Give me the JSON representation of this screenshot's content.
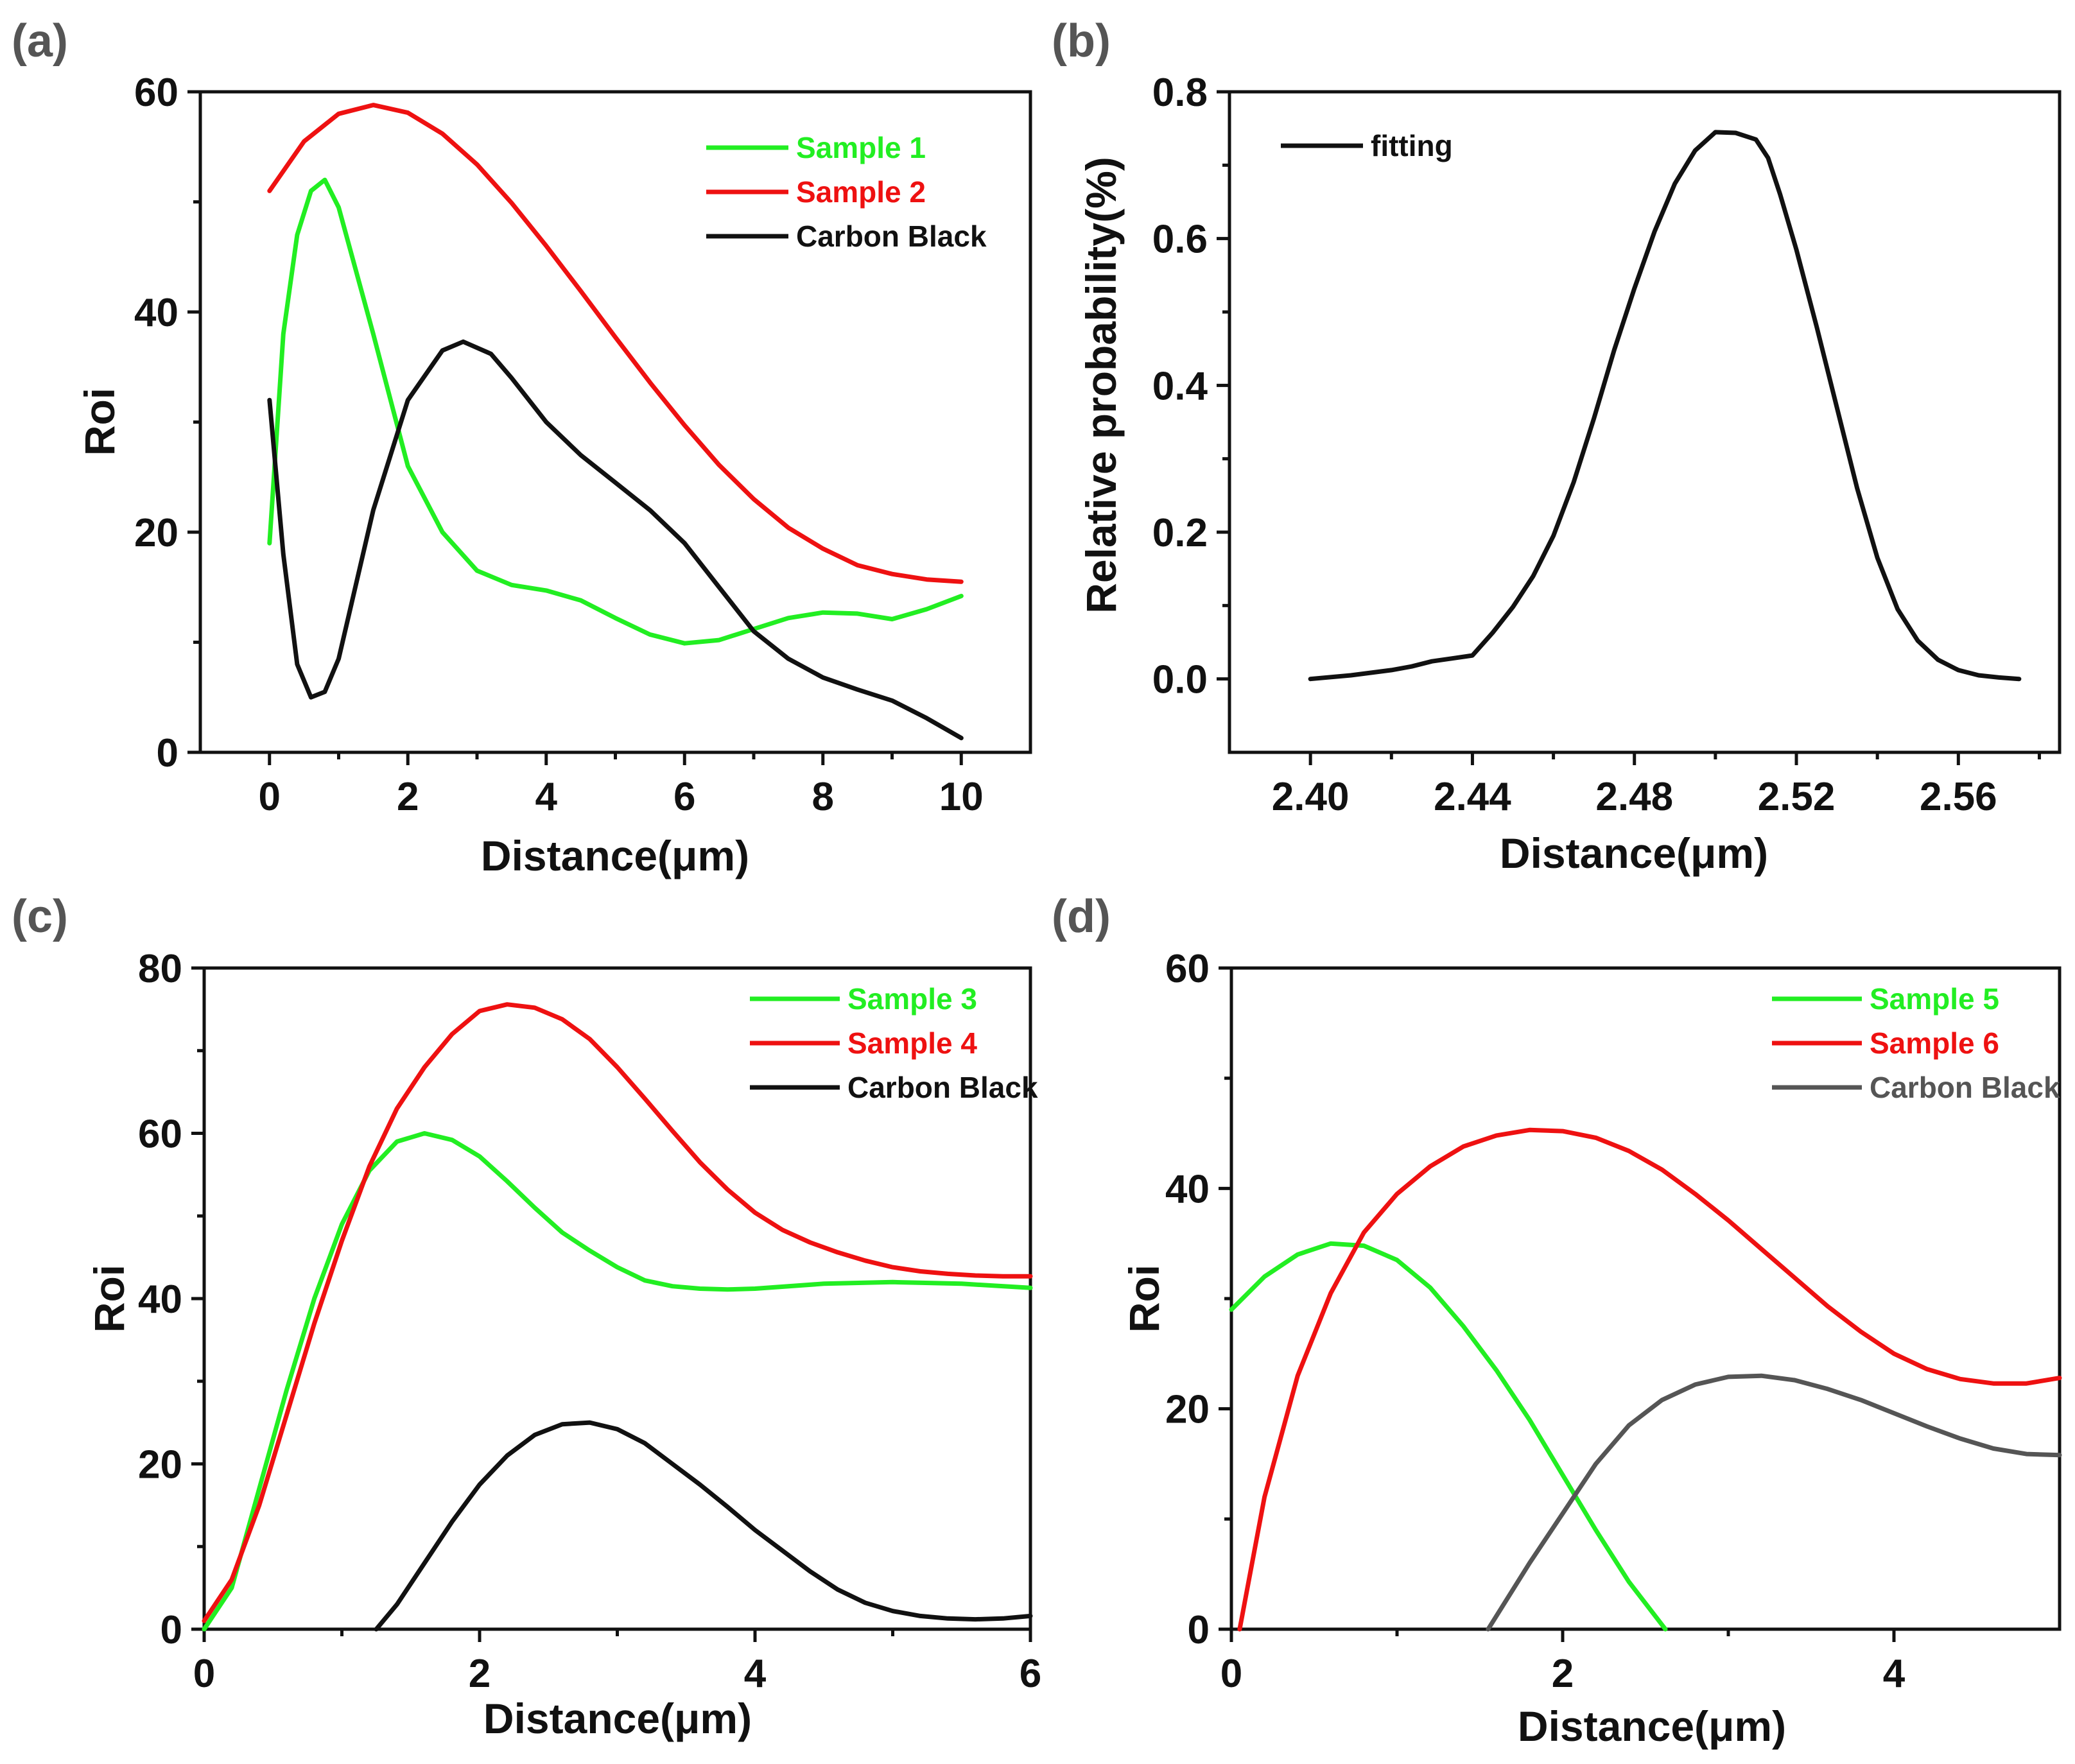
{
  "chart_data": [
    {
      "panel": "(a)",
      "type": "line",
      "xlabel": "Distance(μm)",
      "ylabel": "Roi",
      "xlim": [
        -1,
        11
      ],
      "ylim": [
        0,
        60
      ],
      "xticks": [
        0,
        2,
        4,
        6,
        8,
        10
      ],
      "yticks": [
        0,
        20,
        40,
        60
      ],
      "xticklabels": [
        "0",
        "2",
        "4",
        "6",
        "8",
        "10"
      ],
      "yticklabels": [
        "0",
        "20",
        "40",
        "60"
      ],
      "legend_position": "top-right",
      "series": [
        {
          "name": "Sample 1",
          "color": "#22ee22",
          "x": [
            0,
            0.2,
            0.4,
            0.6,
            0.8,
            1.0,
            1.5,
            2.0,
            2.5,
            3.0,
            3.5,
            4.0,
            4.5,
            5.0,
            5.5,
            6.0,
            6.5,
            7.0,
            7.5,
            8.0,
            8.5,
            9.0,
            9.5,
            10.0
          ],
          "y": [
            19,
            38,
            47,
            51,
            52,
            49.5,
            38,
            26,
            20,
            16.5,
            15.2,
            14.7,
            13.8,
            12.2,
            10.7,
            9.9,
            10.2,
            11.2,
            12.2,
            12.7,
            12.6,
            12.1,
            13.0,
            14.2
          ]
        },
        {
          "name": "Sample 2",
          "color": "#ee1111",
          "x": [
            0,
            0.5,
            1.0,
            1.5,
            2.0,
            2.5,
            3.0,
            3.5,
            4.0,
            4.5,
            5.0,
            5.5,
            6.0,
            6.5,
            7.0,
            7.5,
            8.0,
            8.5,
            9.0,
            9.5,
            10.0
          ],
          "y": [
            51,
            55.5,
            58,
            58.8,
            58.1,
            56.2,
            53.4,
            49.9,
            46,
            41.9,
            37.7,
            33.6,
            29.7,
            26.1,
            23.0,
            20.4,
            18.5,
            17.0,
            16.2,
            15.7,
            15.5
          ]
        },
        {
          "name": "Carbon Black",
          "color": "#111111",
          "x": [
            0,
            0.2,
            0.4,
            0.6,
            0.8,
            1.0,
            1.5,
            2.0,
            2.5,
            2.8,
            3.2,
            3.5,
            4.0,
            4.5,
            5.0,
            5.5,
            6.0,
            6.5,
            7.0,
            7.5,
            8.0,
            8.5,
            9.0,
            9.5,
            10.0
          ],
          "y": [
            32,
            18,
            8,
            5,
            5.5,
            8.5,
            22,
            32,
            36.5,
            37.3,
            36.2,
            34,
            30,
            27,
            24.5,
            22,
            19,
            15,
            11,
            8.5,
            6.8,
            5.7,
            4.7,
            3.1,
            1.3
          ]
        }
      ]
    },
    {
      "panel": "(b)",
      "type": "line",
      "xlabel": "Distance(μm)",
      "ylabel": "Relative probability(%)",
      "xlim": [
        2.38,
        2.585
      ],
      "ylim": [
        -0.1,
        0.8
      ],
      "xticks": [
        2.4,
        2.44,
        2.48,
        2.52,
        2.56
      ],
      "yticks": [
        0.0,
        0.2,
        0.4,
        0.6,
        0.8
      ],
      "xticklabels": [
        "2.40",
        "2.44",
        "2.48",
        "2.52",
        "2.56"
      ],
      "yticklabels": [
        "0.0",
        "0.2",
        "0.4",
        "0.6",
        "0.8"
      ],
      "legend_position": "top-left",
      "series": [
        {
          "name": "fitting",
          "color": "#111111",
          "x": [
            2.4,
            2.41,
            2.42,
            2.425,
            2.43,
            2.435,
            2.44,
            2.445,
            2.45,
            2.455,
            2.46,
            2.465,
            2.47,
            2.475,
            2.48,
            2.485,
            2.49,
            2.495,
            2.5,
            2.505,
            2.51,
            2.513,
            2.516,
            2.52,
            2.525,
            2.53,
            2.535,
            2.54,
            2.545,
            2.55,
            2.555,
            2.56,
            2.565,
            2.57,
            2.575
          ],
          "y": [
            0.0,
            0.005,
            0.012,
            0.017,
            0.024,
            0.028,
            0.032,
            0.063,
            0.098,
            0.14,
            0.195,
            0.268,
            0.355,
            0.448,
            0.532,
            0.61,
            0.675,
            0.72,
            0.745,
            0.744,
            0.735,
            0.71,
            0.66,
            0.585,
            0.48,
            0.37,
            0.26,
            0.165,
            0.095,
            0.052,
            0.026,
            0.012,
            0.005,
            0.002,
            0.0
          ]
        }
      ]
    },
    {
      "panel": "(c)",
      "type": "line",
      "xlabel": "Distance(μm)",
      "ylabel": "Roi",
      "xlim": [
        0,
        6
      ],
      "ylim": [
        0,
        80
      ],
      "xticks": [
        0,
        2,
        4,
        6
      ],
      "yticks": [
        0,
        20,
        40,
        60,
        80
      ],
      "xticklabels": [
        "0",
        "2",
        "4",
        "6"
      ],
      "yticklabels": [
        "0",
        "20",
        "40",
        "60",
        "80"
      ],
      "legend_position": "top-right",
      "series": [
        {
          "name": "Sample 3",
          "color": "#22ee22",
          "x": [
            0,
            0.2,
            0.4,
            0.6,
            0.8,
            1.0,
            1.2,
            1.4,
            1.6,
            1.8,
            2.0,
            2.2,
            2.4,
            2.6,
            2.8,
            3.0,
            3.2,
            3.4,
            3.6,
            3.8,
            4.0,
            4.5,
            5.0,
            5.5,
            6.0
          ],
          "y": [
            0,
            5,
            17,
            29,
            40,
            49,
            55.5,
            59,
            60,
            59.2,
            57.2,
            54.2,
            51,
            48,
            45.8,
            43.8,
            42.2,
            41.5,
            41.2,
            41.1,
            41.2,
            41.8,
            42,
            41.8,
            41.3
          ]
        },
        {
          "name": "Sample 4",
          "color": "#ee1111",
          "x": [
            0,
            0.2,
            0.4,
            0.6,
            0.8,
            1.0,
            1.2,
            1.4,
            1.6,
            1.8,
            2.0,
            2.2,
            2.4,
            2.6,
            2.8,
            3.0,
            3.2,
            3.4,
            3.6,
            3.8,
            4.0,
            4.2,
            4.4,
            4.6,
            4.8,
            5.0,
            5.2,
            5.4,
            5.6,
            5.8,
            6.0
          ],
          "y": [
            1,
            6,
            15,
            26,
            37,
            47,
            56,
            63,
            68,
            72,
            74.8,
            75.6,
            75.2,
            73.8,
            71.4,
            68,
            64.2,
            60.3,
            56.5,
            53.2,
            50.4,
            48.3,
            46.8,
            45.6,
            44.6,
            43.8,
            43.3,
            43.0,
            42.8,
            42.7,
            42.7
          ]
        },
        {
          "name": "Carbon Black",
          "color": "#111111",
          "x": [
            1.25,
            1.4,
            1.6,
            1.8,
            2.0,
            2.2,
            2.4,
            2.6,
            2.8,
            3.0,
            3.2,
            3.4,
            3.6,
            3.8,
            4.0,
            4.2,
            4.4,
            4.6,
            4.8,
            5.0,
            5.2,
            5.4,
            5.6,
            5.8,
            6.0
          ],
          "y": [
            0,
            3,
            8,
            13,
            17.5,
            21,
            23.5,
            24.8,
            25,
            24.2,
            22.5,
            20,
            17.5,
            14.8,
            12,
            9.5,
            7,
            4.8,
            3.2,
            2.2,
            1.6,
            1.3,
            1.2,
            1.3,
            1.6
          ]
        }
      ]
    },
    {
      "panel": "(d)",
      "type": "line",
      "xlabel": "Distance(μm)",
      "ylabel": "Roi",
      "xlim": [
        0,
        5
      ],
      "ylim": [
        0,
        60
      ],
      "xticks": [
        0,
        2,
        4
      ],
      "yticks": [
        0,
        20,
        40,
        60
      ],
      "xticklabels": [
        "0",
        "2",
        "4"
      ],
      "yticklabels": [
        "0",
        "20",
        "40",
        "60"
      ],
      "legend_position": "top-right",
      "series": [
        {
          "name": "Sample 5",
          "color": "#22ee22",
          "x": [
            0,
            0.2,
            0.4,
            0.6,
            0.8,
            1.0,
            1.2,
            1.4,
            1.6,
            1.8,
            2.0,
            2.2,
            2.4,
            2.62
          ],
          "y": [
            29,
            32,
            34,
            35,
            34.8,
            33.5,
            31,
            27.5,
            23.5,
            19,
            14,
            9,
            4.3,
            0
          ]
        },
        {
          "name": "Sample 6",
          "color": "#ee1111",
          "x": [
            0.05,
            0.2,
            0.4,
            0.6,
            0.8,
            1.0,
            1.2,
            1.4,
            1.6,
            1.8,
            2.0,
            2.2,
            2.4,
            2.6,
            2.8,
            3.0,
            3.2,
            3.4,
            3.6,
            3.8,
            4.0,
            4.2,
            4.4,
            4.6,
            4.8,
            5.0
          ],
          "y": [
            0,
            12,
            23,
            30.5,
            36,
            39.5,
            42,
            43.8,
            44.8,
            45.3,
            45.2,
            44.6,
            43.4,
            41.7,
            39.5,
            37.1,
            34.5,
            31.9,
            29.3,
            27.0,
            25.0,
            23.6,
            22.7,
            22.3,
            22.3,
            22.8
          ]
        },
        {
          "name": "Carbon Black",
          "color": "#555555",
          "x": [
            1.55,
            1.8,
            2.0,
            2.2,
            2.4,
            2.6,
            2.8,
            3.0,
            3.2,
            3.4,
            3.6,
            3.8,
            4.0,
            4.2,
            4.4,
            4.6,
            4.8,
            5.0
          ],
          "y": [
            0,
            6,
            10.5,
            15,
            18.5,
            20.8,
            22.2,
            22.9,
            23,
            22.6,
            21.8,
            20.8,
            19.6,
            18.4,
            17.3,
            16.4,
            15.9,
            15.8
          ]
        }
      ]
    }
  ]
}
